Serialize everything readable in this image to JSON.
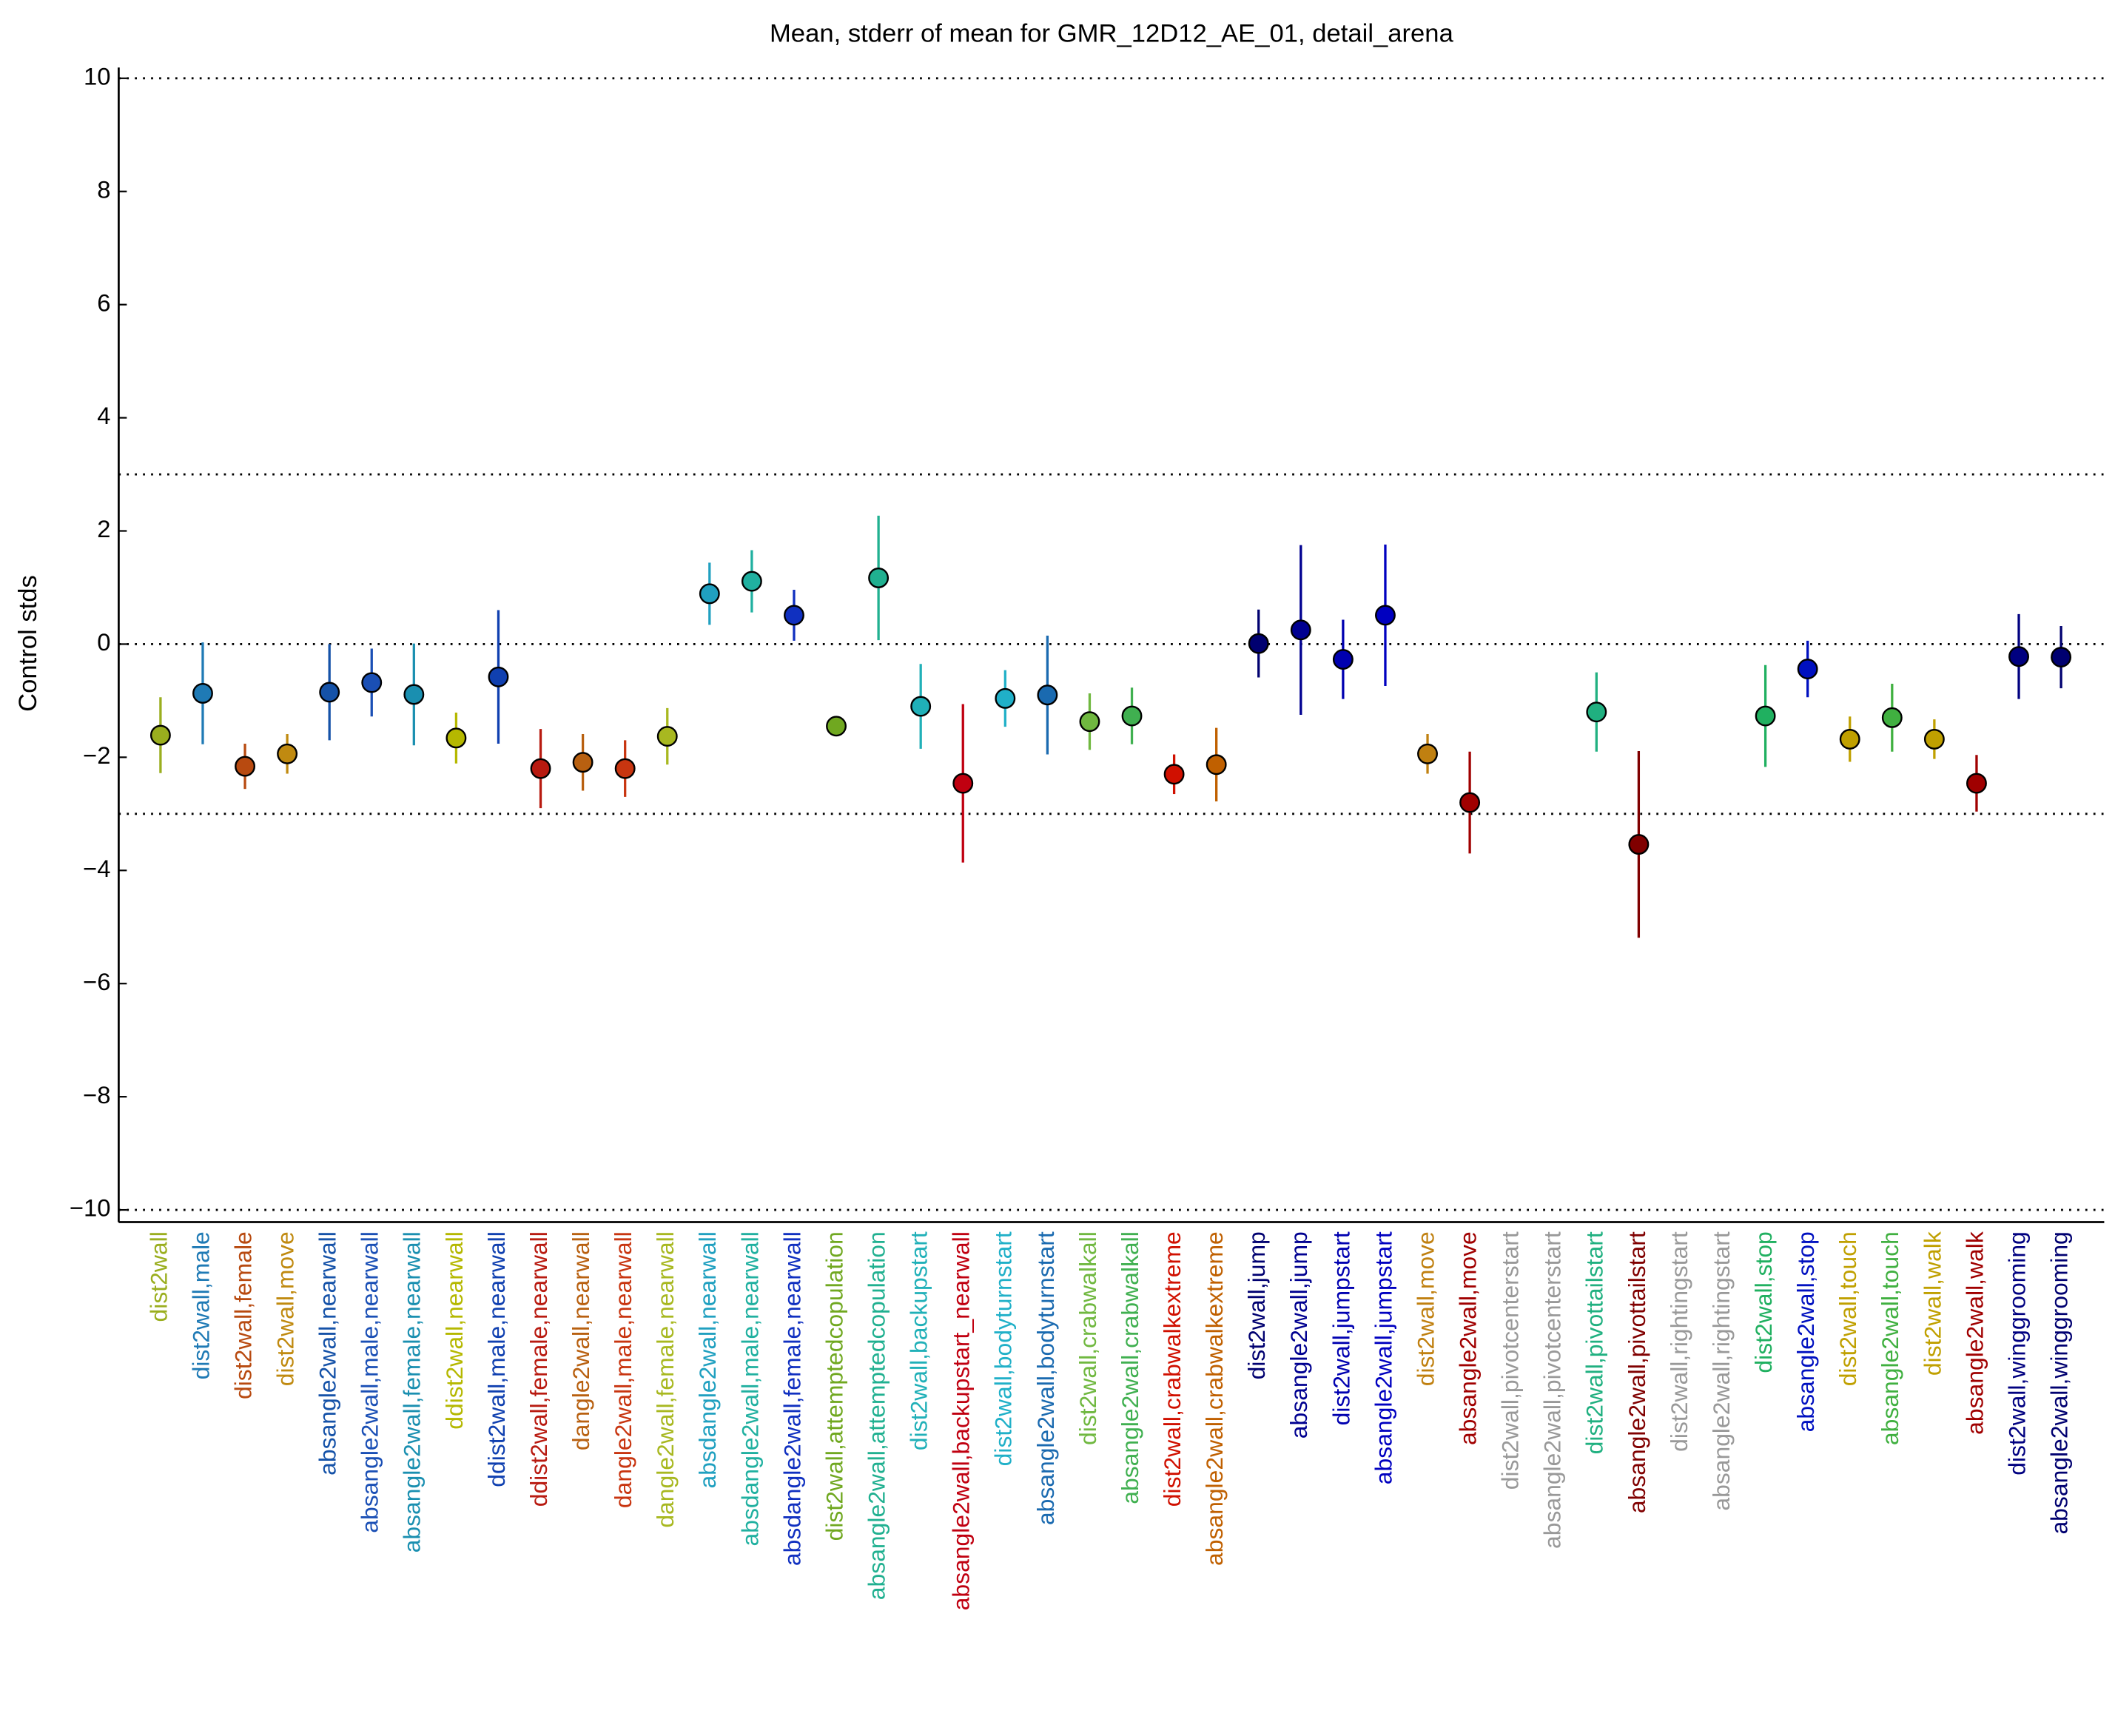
{
  "chart_data": {
    "type": "errorbar",
    "title": "Mean, stderr of mean for GMR_12D12_AE_01, detail_arena",
    "y_label": "Control stds",
    "categories": [
      "dist2wall",
      "dist2wall,male",
      "dist2wall,female",
      "dist2wall,move",
      "absangle2wall,nearwall",
      "absangle2wall,male,nearwall",
      "absangle2wall,female,nearwall",
      "ddist2wall,nearwall",
      "ddist2wall,male,nearwall",
      "ddist2wall,female,nearwall",
      "dangle2wall,nearwall",
      "dangle2wall,male,nearwall",
      "dangle2wall,female,nearwall",
      "absdangle2wall,nearwall",
      "absdangle2wall,male,nearwall",
      "absdangle2wall,female,nearwall",
      "dist2wall,attemptedcopulation",
      "absangle2wall,attemptedcopulation",
      "dist2wall,backupstart",
      "absangle2wall,backupstart_nearwall",
      "dist2wall,bodyturnstart",
      "absangle2wall,bodyturnstart",
      "dist2wall,crabwalkall",
      "absangle2wall,crabwalkall",
      "dist2wall,crabwalkextreme",
      "absangle2wall,crabwalkextreme",
      "dist2wall,jump",
      "absangle2wall,jump",
      "dist2wall,jumpstart",
      "absangle2wall,jumpstart",
      "dist2wall,move",
      "absangle2wall,move",
      "dist2wall,pivotcenterstart",
      "absangle2wall,pivotcenterstart",
      "dist2wall,pivottailstart",
      "absangle2wall,pivottailstart",
      "dist2wall,rightingstart",
      "absangle2wall,rightingstart",
      "dist2wall,stop",
      "absangle2wall,stop",
      "dist2wall,touch",
      "absangle2wall,touch",
      "dist2wall,walk",
      "absangle2wall,walk",
      "dist2wall,winggrooming",
      "absangle2wall,winggrooming"
    ],
    "values": [
      -1.61,
      -0.87,
      -2.16,
      -1.94,
      -0.85,
      -0.68,
      -0.89,
      -1.66,
      -0.58,
      -2.2,
      -2.09,
      -2.2,
      -1.63,
      0.89,
      1.11,
      0.51,
      -1.45,
      1.17,
      -1.1,
      -2.46,
      -0.96,
      -0.9,
      -1.37,
      -1.27,
      -2.3,
      -2.13,
      0.01,
      0.25,
      -0.27,
      0.51,
      -1.94,
      -2.8,
      null,
      null,
      -1.2,
      -3.54,
      null,
      null,
      -1.27,
      -0.44,
      -1.68,
      -1.3,
      -1.68,
      -2.46,
      -0.22,
      -0.23
    ],
    "errors": [
      0.67,
      0.9,
      0.4,
      0.35,
      0.85,
      0.6,
      0.9,
      0.45,
      1.18,
      0.7,
      0.5,
      0.5,
      0.5,
      0.55,
      0.55,
      0.45,
      0.1,
      1.1,
      0.75,
      1.4,
      0.5,
      1.05,
      0.5,
      0.5,
      0.35,
      0.65,
      0.6,
      1.5,
      0.7,
      1.25,
      0.35,
      0.9,
      null,
      null,
      0.7,
      1.65,
      null,
      null,
      0.9,
      0.5,
      0.4,
      0.6,
      0.35,
      0.5,
      0.75,
      0.55
    ],
    "colors": [
      "#9aae1e",
      "#1f7ab5",
      "#b84a10",
      "#c08a10",
      "#1552a8",
      "#1a4fb5",
      "#1a8fb0",
      "#b5b800",
      "#1040b0",
      "#b81a10",
      "#b86010",
      "#c83510",
      "#a8b820",
      "#20a0c0",
      "#20b0a0",
      "#1030c0",
      "#70a820",
      "#20b090",
      "#20b0b8",
      "#c00010",
      "#20b0c8",
      "#1a6ab0",
      "#70b840",
      "#40b050",
      "#d01000",
      "#c06000",
      "#000070",
      "#000090",
      "#0000b0",
      "#0000c0",
      "#c08010",
      "#a00000",
      "#999999",
      "#999999",
      "#20b080",
      "#800000",
      "#999999",
      "#999999",
      "#20b060",
      "#0010c0",
      "#c0a000",
      "#40b040",
      "#c0a000",
      "#a00000",
      "#000080",
      "#000070"
    ],
    "ylim": [
      -10,
      10
    ],
    "yticks": [
      {
        "value": -10,
        "label": "−10"
      },
      {
        "value": -8,
        "label": "−8"
      },
      {
        "value": -6,
        "label": "−6"
      },
      {
        "value": -4,
        "label": "−4"
      },
      {
        "value": -2,
        "label": "−2"
      },
      0,
      2,
      4,
      6,
      8,
      10
    ],
    "reference_lines": [
      -10,
      -3,
      0,
      3,
      10
    ]
  }
}
